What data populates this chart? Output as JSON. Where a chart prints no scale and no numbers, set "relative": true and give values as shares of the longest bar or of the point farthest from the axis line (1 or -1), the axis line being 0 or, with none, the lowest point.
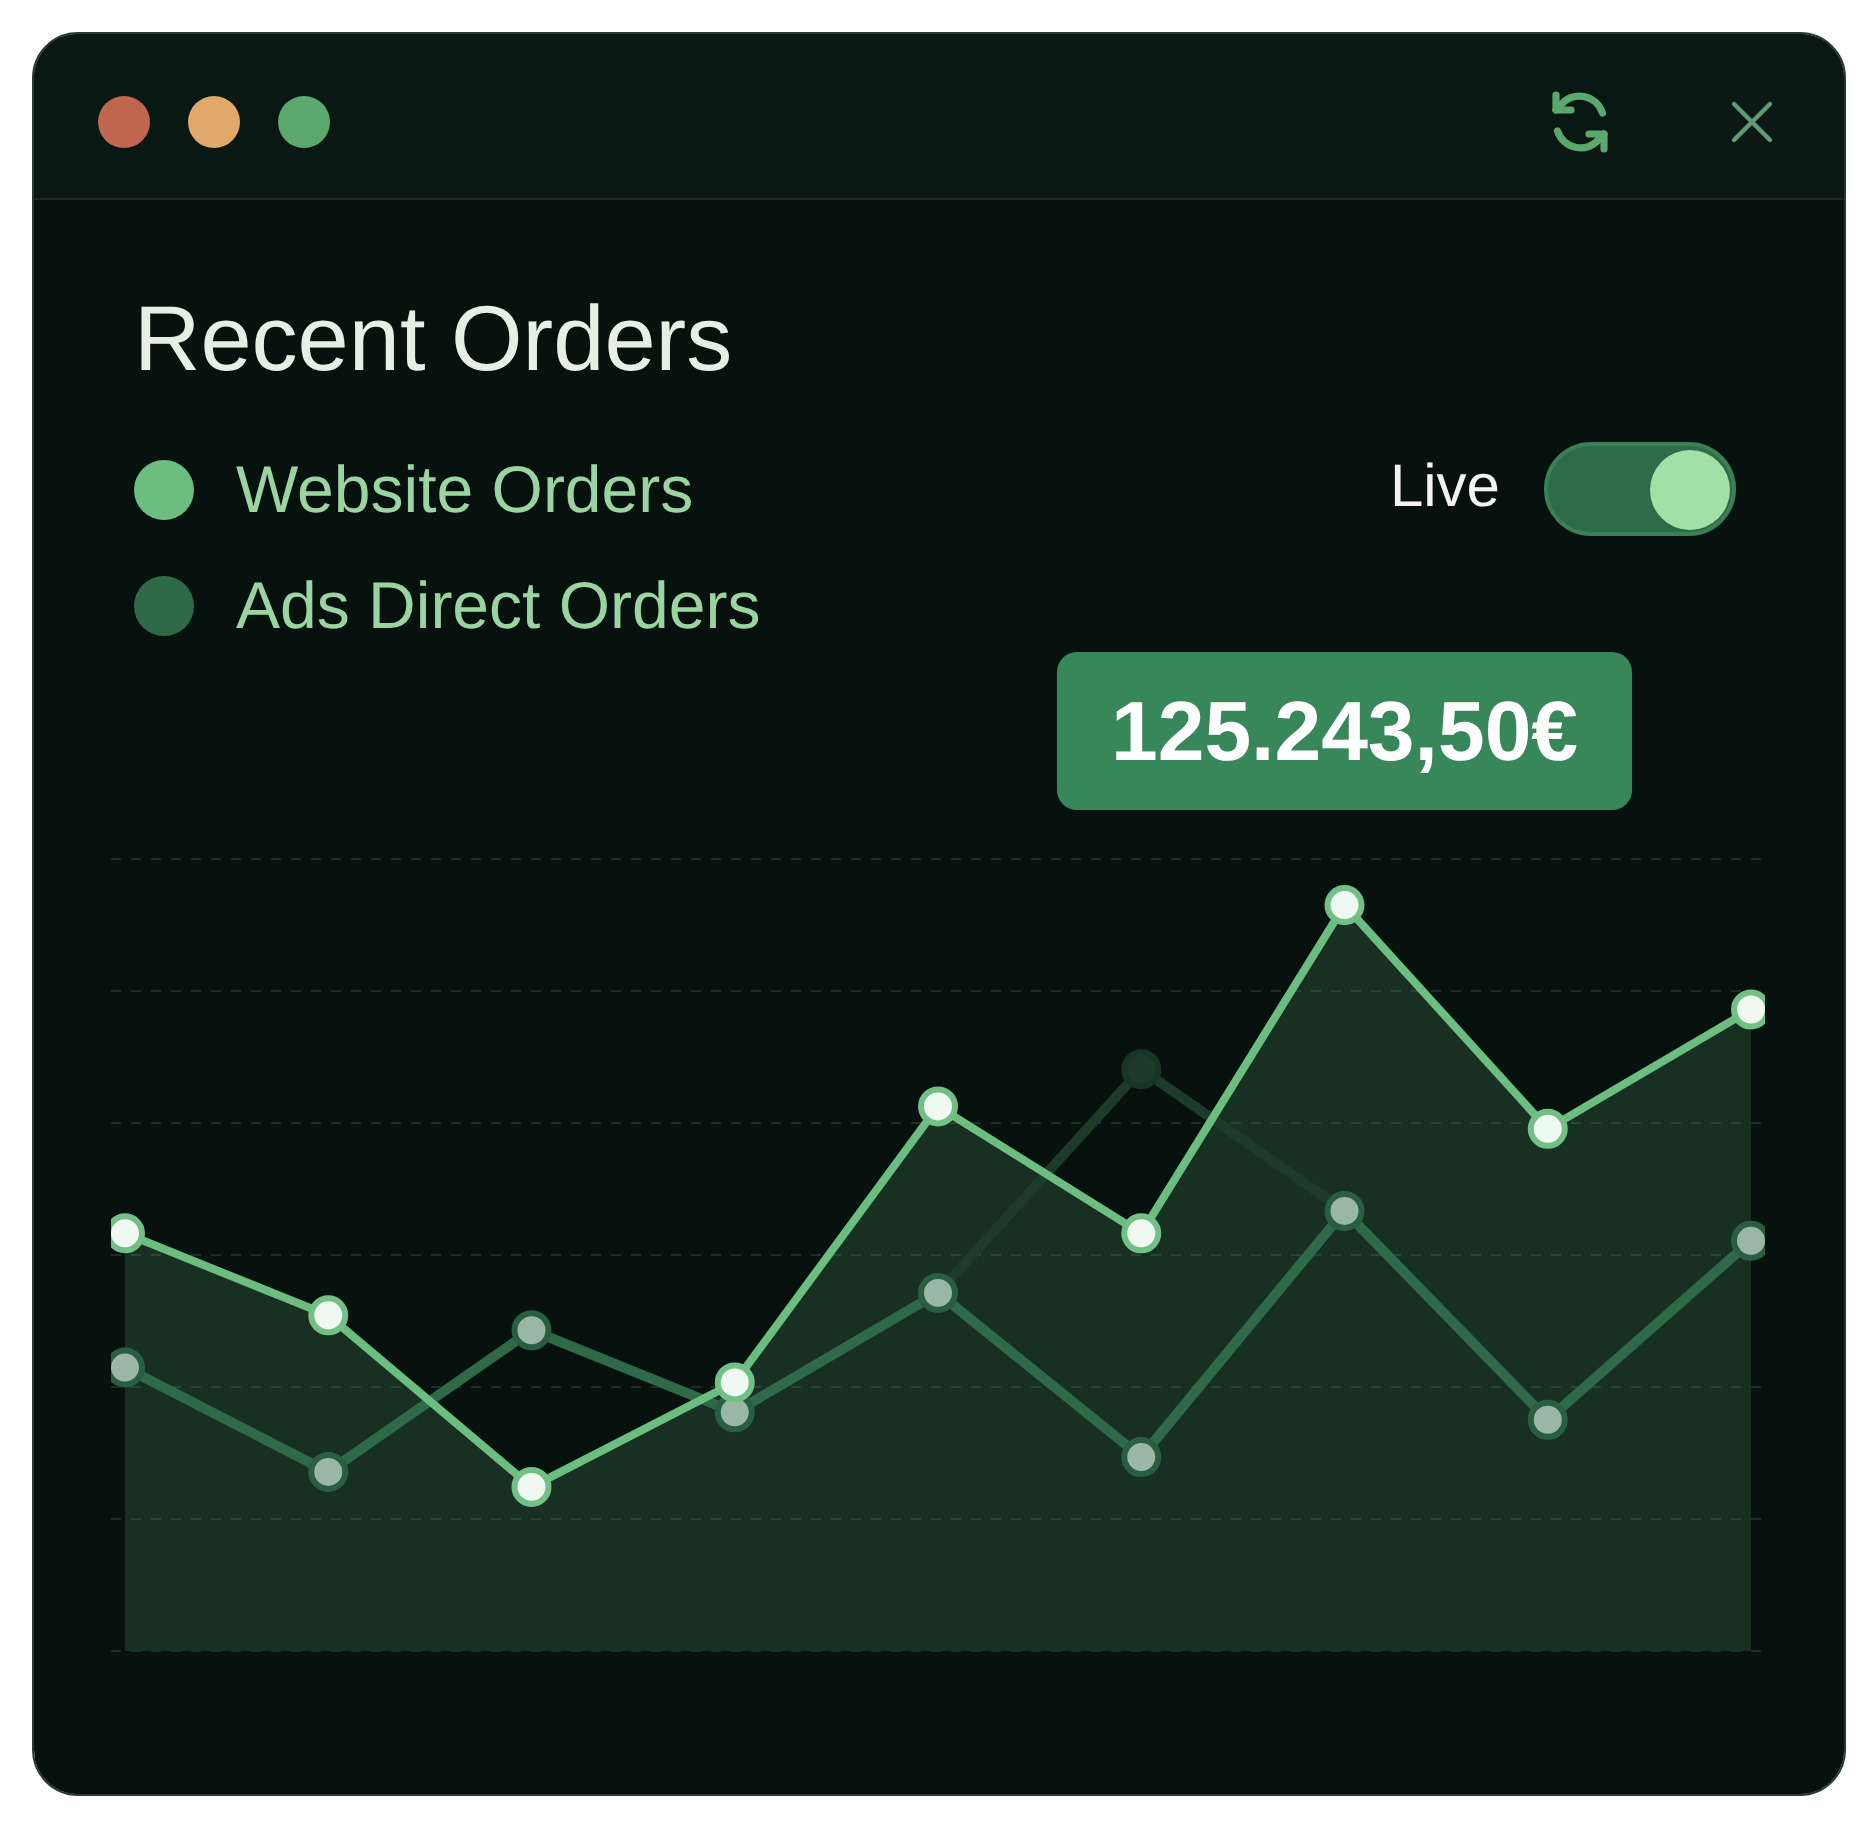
{
  "chart_data": {
    "type": "line",
    "title": "Recent Orders",
    "relative": true,
    "tick_labels": false,
    "grid": "y",
    "legend": "top left",
    "marker": "circle",
    "line_style": "solid",
    "categories": [
      null,
      null,
      null,
      null,
      null,
      null,
      null,
      null,
      null
    ],
    "series": [
      {
        "name": "Website Orders",
        "type": "area",
        "color": "#6cbd80",
        "values": [
          0.56,
          0.45,
          0.22,
          0.36,
          0.73,
          0.56,
          1,
          0.7,
          0.86
        ]
      },
      {
        "name": "Ads Direct Orders",
        "color": "#2e6a47",
        "values": [
          0.38,
          0.24,
          0.43,
          0.32,
          0.48,
          0.26,
          0.59,
          0.31,
          0.55
        ]
      },
      {
        "color": "#1c3b2b",
        "values": [
          null,
          null,
          null,
          null,
          0.48,
          0.78,
          0.59,
          null,
          null
        ]
      }
    ],
    "annotations": [
      "Live",
      {
        "text": "125.243,50€",
        "y": 1
      }
    ]
  }
}
